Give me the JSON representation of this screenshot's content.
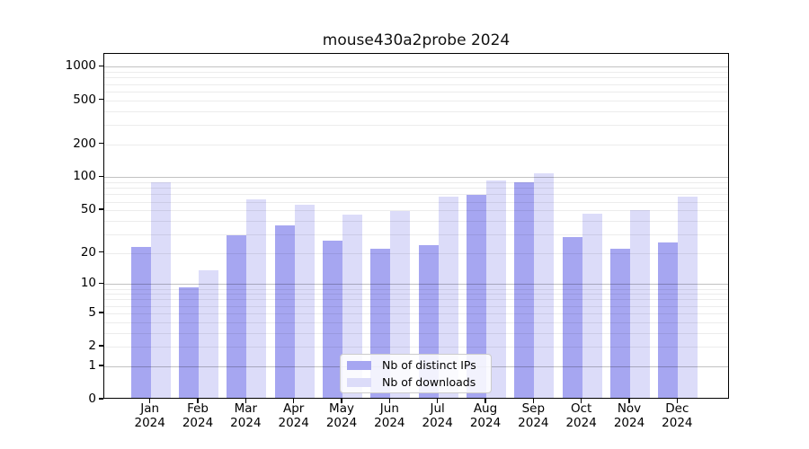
{
  "title": "mouse430a2probe 2024",
  "colors": {
    "distinct_ips": "#a6a6f1",
    "downloads": "#dcdcf9",
    "axis": "#000000",
    "grid_major": "rgba(0,0,0,0.24)",
    "grid_minor": "rgba(0,0,0,0.075)"
  },
  "legend": {
    "items": [
      {
        "label": "Nb of distinct IPs",
        "color": "#a6a6f1"
      },
      {
        "label": "Nb of downloads",
        "color": "#dcdcf9"
      }
    ]
  },
  "chart_data": {
    "type": "bar",
    "title": "mouse430a2probe 2024",
    "categories": [
      "Jan 2024",
      "Feb 2024",
      "Mar 2024",
      "Apr 2024",
      "May 2024",
      "Jun 2024",
      "Jul 2024",
      "Aug 2024",
      "Sep 2024",
      "Oct 2024",
      "Nov 2024",
      "Dec 2024"
    ],
    "series": [
      {
        "name": "Nb of distinct IPs",
        "values": [
          22,
          9,
          28,
          35,
          25,
          21,
          23,
          66,
          87,
          27,
          21,
          24
        ]
      },
      {
        "name": "Nb of downloads",
        "values": [
          87,
          13,
          61,
          54,
          44,
          47,
          64,
          90,
          105,
          45,
          48,
          64
        ]
      }
    ],
    "xlabel": "",
    "ylabel": "",
    "yscale": "log10(value+1)",
    "yticks": [
      0,
      1,
      2,
      5,
      10,
      20,
      50,
      100,
      200,
      500,
      1000
    ],
    "ylim": [
      0,
      1300
    ],
    "grid": "horizontal, log minors light + decade lines darker, drawn over bars",
    "legend_position": "bottom-center inside plot"
  }
}
